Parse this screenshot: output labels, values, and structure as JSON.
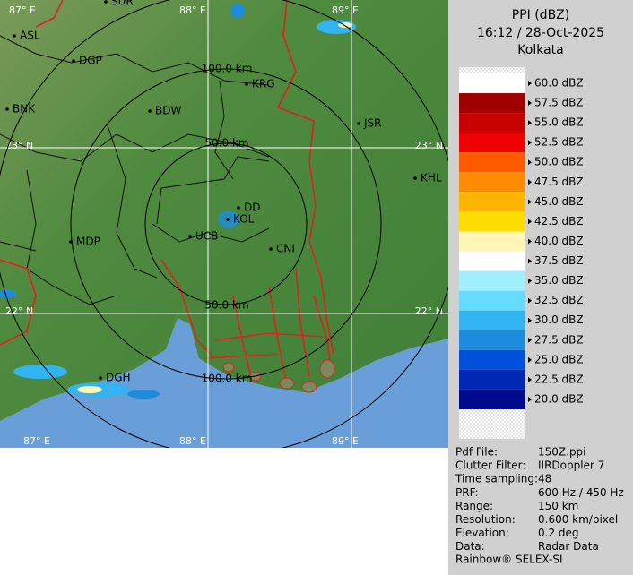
{
  "header": {
    "title": "PPI (dBZ)",
    "time": "16:12 / 28-Oct-2025",
    "site": "Kolkata"
  },
  "legend": {
    "levels": [
      {
        "label": "60.0 dBZ",
        "color": "#ffffff"
      },
      {
        "label": "57.5 dBZ",
        "color": "#a00000"
      },
      {
        "label": "55.0 dBZ",
        "color": "#c80000"
      },
      {
        "label": "52.5 dBZ",
        "color": "#f00000"
      },
      {
        "label": "50.0 dBZ",
        "color": "#ff5a00"
      },
      {
        "label": "47.5 dBZ",
        "color": "#ff8c00"
      },
      {
        "label": "45.0 dBZ",
        "color": "#ffb400"
      },
      {
        "label": "42.5 dBZ",
        "color": "#ffdc00"
      },
      {
        "label": "40.0 dBZ",
        "color": "#fff5b4"
      },
      {
        "label": "37.5 dBZ",
        "color": "#ffffff"
      },
      {
        "label": "35.0 dBZ",
        "color": "#a0f0ff"
      },
      {
        "label": "32.5 dBZ",
        "color": "#64dcff"
      },
      {
        "label": "30.0 dBZ",
        "color": "#32b4f0"
      },
      {
        "label": "27.5 dBZ",
        "color": "#1e8cdc"
      },
      {
        "label": "25.0 dBZ",
        "color": "#0050dc"
      },
      {
        "label": "22.5 dBZ",
        "color": "#0028b4"
      },
      {
        "label": "20.0 dBZ",
        "color": "#000a8c"
      }
    ]
  },
  "map": {
    "cities": [
      "SUR",
      "ASL",
      "DGP",
      "BNK",
      "BDW",
      "KRG",
      "JSR",
      "KHL",
      "MDP",
      "DD",
      "KOL",
      "UCB",
      "CNI",
      "DGH"
    ],
    "grid_labels": [
      "87° E",
      "88° E",
      "89° E",
      "23° N",
      "23° N",
      "22° N",
      "22° N",
      "87° E",
      "88° E",
      "89° E"
    ],
    "ring_labels": [
      "100.0 km",
      "50.0 km",
      "50.0 km",
      "100.0 km"
    ]
  },
  "info": {
    "rows": [
      [
        "Pdf File:",
        "150Z.ppi"
      ],
      [
        "Clutter Filter:",
        "IIRDoppler 7"
      ],
      [
        "Time sampling:",
        "48"
      ],
      [
        "PRF:",
        "600 Hz / 450 Hz"
      ],
      [
        "Range:",
        "150 km"
      ],
      [
        "Resolution:",
        "0.600 km/pixel"
      ],
      [
        "Elevation:",
        "0.2 deg"
      ],
      [
        "Data:",
        "Radar Data"
      ]
    ],
    "footer": "Rainbow® SELEX-SI"
  }
}
